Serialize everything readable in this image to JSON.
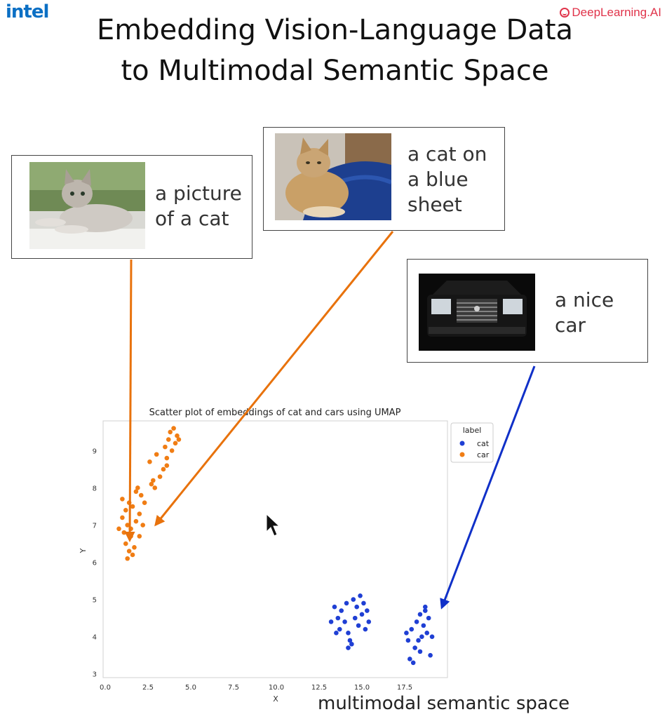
{
  "branding": {
    "left_logo": "intel",
    "right_logo": "DeepLearning.AI",
    "left_color": "#0b6fc4",
    "right_color": "#e0334a"
  },
  "slide": {
    "title": "Embedding Vision-Language Data to Multimodal Semantic Space",
    "footer": "multimodal semantic space"
  },
  "cards": [
    {
      "caption": "a picture\nof a cat",
      "image": "kitten-on-windowsill-photo"
    },
    {
      "caption": "a cat on\na blue\nsheet",
      "image": "cat-on-blue-sheet-photo"
    },
    {
      "caption": "a nice\ncar",
      "image": "black-suv-front-photo"
    }
  ],
  "arrows": [
    {
      "from": "card-1",
      "color": "#e8720c"
    },
    {
      "from": "card-2",
      "color": "#e8720c"
    },
    {
      "from": "card-3",
      "color": "#1030c8"
    }
  ],
  "chart_data": {
    "type": "scatter",
    "title": "Scatter plot of embeddings of cat and cars using UMAP",
    "xlabel": "X",
    "ylabel": "Y",
    "xlim": [
      0,
      20
    ],
    "ylim": [
      2.9,
      9.8
    ],
    "xticks": [
      "0.0",
      "2.5",
      "5.0",
      "7.5",
      "10.0",
      "12.5",
      "15.0",
      "17.5"
    ],
    "yticks": [
      "3",
      "4",
      "5",
      "6",
      "7",
      "8",
      "9"
    ],
    "grid": false,
    "legend": {
      "title": "label",
      "position": "top-right"
    },
    "series": [
      {
        "name": "cat",
        "color": "#1f3fd4",
        "points": [
          [
            13.2,
            4.4
          ],
          [
            13.4,
            4.8
          ],
          [
            13.6,
            4.5
          ],
          [
            13.7,
            4.2
          ],
          [
            13.8,
            4.7
          ],
          [
            14.0,
            4.4
          ],
          [
            14.1,
            4.9
          ],
          [
            14.2,
            4.1
          ],
          [
            14.3,
            3.9
          ],
          [
            14.2,
            3.7
          ],
          [
            14.4,
            3.8
          ],
          [
            14.5,
            5.0
          ],
          [
            14.6,
            4.5
          ],
          [
            14.7,
            4.8
          ],
          [
            14.8,
            4.3
          ],
          [
            14.9,
            5.1
          ],
          [
            15.0,
            4.6
          ],
          [
            15.1,
            4.9
          ],
          [
            15.2,
            4.2
          ],
          [
            15.3,
            4.7
          ],
          [
            15.4,
            4.4
          ],
          [
            13.5,
            4.1
          ],
          [
            17.6,
            4.1
          ],
          [
            17.7,
            3.9
          ],
          [
            17.8,
            3.4
          ],
          [
            17.9,
            4.2
          ],
          [
            18.0,
            3.3
          ],
          [
            18.1,
            3.7
          ],
          [
            18.2,
            4.4
          ],
          [
            18.3,
            3.9
          ],
          [
            18.4,
            4.6
          ],
          [
            18.5,
            4.0
          ],
          [
            18.6,
            4.3
          ],
          [
            18.7,
            4.7
          ],
          [
            18.8,
            4.1
          ],
          [
            18.9,
            4.5
          ],
          [
            19.0,
            3.5
          ],
          [
            18.4,
            3.6
          ],
          [
            19.1,
            4.0
          ],
          [
            18.7,
            4.8
          ]
        ]
      },
      {
        "name": "car",
        "color": "#f07d14",
        "points": [
          [
            0.8,
            6.9
          ],
          [
            1.0,
            7.2
          ],
          [
            1.0,
            7.7
          ],
          [
            1.1,
            6.8
          ],
          [
            1.2,
            7.4
          ],
          [
            1.2,
            6.5
          ],
          [
            1.3,
            7.0
          ],
          [
            1.3,
            6.1
          ],
          [
            1.4,
            6.3
          ],
          [
            1.4,
            7.6
          ],
          [
            1.5,
            6.7
          ],
          [
            1.5,
            6.9
          ],
          [
            1.6,
            6.2
          ],
          [
            1.6,
            7.5
          ],
          [
            1.7,
            6.4
          ],
          [
            1.8,
            7.1
          ],
          [
            1.9,
            8.0
          ],
          [
            2.0,
            7.3
          ],
          [
            2.0,
            6.7
          ],
          [
            2.1,
            7.8
          ],
          [
            2.2,
            7.0
          ],
          [
            2.3,
            7.6
          ],
          [
            1.8,
            7.9
          ],
          [
            2.6,
            8.7
          ],
          [
            2.7,
            8.1
          ],
          [
            2.8,
            8.2
          ],
          [
            2.9,
            8.0
          ],
          [
            3.0,
            8.9
          ],
          [
            3.2,
            8.3
          ],
          [
            3.4,
            8.5
          ],
          [
            3.5,
            9.1
          ],
          [
            3.6,
            8.6
          ],
          [
            3.7,
            9.3
          ],
          [
            3.8,
            9.5
          ],
          [
            3.9,
            9.0
          ],
          [
            4.0,
            9.6
          ],
          [
            4.1,
            9.2
          ],
          [
            4.2,
            9.4
          ],
          [
            4.3,
            9.3
          ],
          [
            3.6,
            8.8
          ]
        ]
      }
    ]
  }
}
